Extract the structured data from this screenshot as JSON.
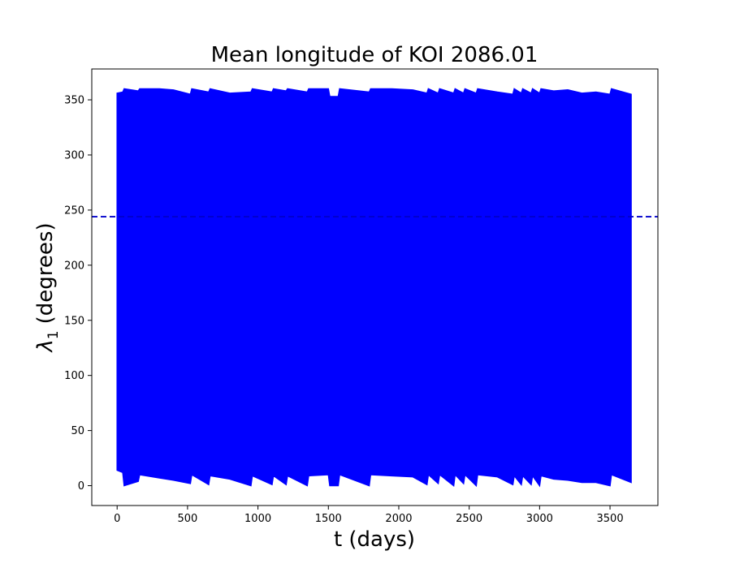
{
  "chart_data": {
    "type": "line",
    "title": "Mean longitude of KOI 2086.01",
    "xlabel": "t (days)",
    "ylabel_symbol": "λ",
    "ylabel_subscript": "1",
    "ylabel_text": "(degrees)",
    "xlim": [
      -180,
      3840
    ],
    "ylim": [
      -18,
      378
    ],
    "xticks": [
      0,
      500,
      1000,
      1500,
      2000,
      2500,
      3000,
      3500
    ],
    "yticks": [
      0,
      50,
      100,
      150,
      200,
      250,
      300,
      350
    ],
    "grid": false,
    "series": [
      {
        "style": "solid",
        "color": "#0000ff",
        "t_start": 0,
        "t_end": 3650,
        "band_top": [
          [
            0,
            356
          ],
          [
            40,
            357
          ],
          [
            50,
            360
          ],
          [
            150,
            358
          ],
          [
            160,
            360
          ],
          [
            300,
            360
          ],
          [
            400,
            359
          ],
          [
            520,
            355
          ],
          [
            530,
            360
          ],
          [
            650,
            357
          ],
          [
            660,
            360
          ],
          [
            800,
            356
          ],
          [
            950,
            357
          ],
          [
            960,
            360
          ],
          [
            1100,
            357
          ],
          [
            1110,
            360
          ],
          [
            1200,
            358
          ],
          [
            1210,
            360
          ],
          [
            1350,
            357
          ],
          [
            1360,
            360
          ],
          [
            1500,
            360
          ],
          [
            1510,
            353
          ],
          [
            1570,
            353
          ],
          [
            1580,
            360
          ],
          [
            1790,
            357
          ],
          [
            1800,
            360
          ],
          [
            1950,
            360
          ],
          [
            2100,
            359
          ],
          [
            2200,
            356
          ],
          [
            2210,
            360
          ],
          [
            2280,
            356
          ],
          [
            2290,
            360
          ],
          [
            2390,
            356
          ],
          [
            2400,
            360
          ],
          [
            2460,
            356
          ],
          [
            2470,
            360
          ],
          [
            2550,
            356
          ],
          [
            2560,
            360
          ],
          [
            2700,
            357
          ],
          [
            2810,
            355
          ],
          [
            2820,
            360
          ],
          [
            2870,
            356
          ],
          [
            2880,
            360
          ],
          [
            2940,
            356
          ],
          [
            2950,
            360
          ],
          [
            3000,
            356
          ],
          [
            3010,
            360
          ],
          [
            3100,
            358
          ],
          [
            3200,
            359
          ],
          [
            3300,
            356
          ],
          [
            3400,
            357
          ],
          [
            3500,
            355
          ],
          [
            3510,
            360
          ],
          [
            3650,
            355
          ]
        ],
        "band_bottom": [
          [
            0,
            14
          ],
          [
            40,
            12
          ],
          [
            50,
            0
          ],
          [
            150,
            4
          ],
          [
            160,
            10
          ],
          [
            300,
            7
          ],
          [
            400,
            5
          ],
          [
            520,
            2
          ],
          [
            530,
            10
          ],
          [
            650,
            1
          ],
          [
            660,
            9
          ],
          [
            800,
            6
          ],
          [
            950,
            0
          ],
          [
            960,
            9
          ],
          [
            1100,
            1
          ],
          [
            1110,
            9
          ],
          [
            1200,
            1
          ],
          [
            1210,
            9
          ],
          [
            1350,
            0
          ],
          [
            1360,
            9
          ],
          [
            1500,
            10
          ],
          [
            1510,
            0
          ],
          [
            1570,
            0
          ],
          [
            1580,
            10
          ],
          [
            1790,
            0
          ],
          [
            1800,
            10
          ],
          [
            1950,
            9
          ],
          [
            2100,
            8
          ],
          [
            2200,
            1
          ],
          [
            2210,
            10
          ],
          [
            2280,
            2
          ],
          [
            2290,
            10
          ],
          [
            2390,
            0
          ],
          [
            2400,
            10
          ],
          [
            2460,
            2
          ],
          [
            2470,
            10
          ],
          [
            2550,
            0
          ],
          [
            2560,
            10
          ],
          [
            2700,
            8
          ],
          [
            2810,
            1
          ],
          [
            2820,
            9
          ],
          [
            2870,
            1
          ],
          [
            2880,
            9
          ],
          [
            2940,
            1
          ],
          [
            2950,
            9
          ],
          [
            3000,
            0
          ],
          [
            3010,
            9
          ],
          [
            3100,
            6
          ],
          [
            3200,
            5
          ],
          [
            3300,
            3
          ],
          [
            3400,
            3
          ],
          [
            3500,
            0
          ],
          [
            3510,
            10
          ],
          [
            3650,
            3
          ]
        ]
      },
      {
        "style": "dashed",
        "color": "#0000cc",
        "y": 244
      }
    ]
  }
}
